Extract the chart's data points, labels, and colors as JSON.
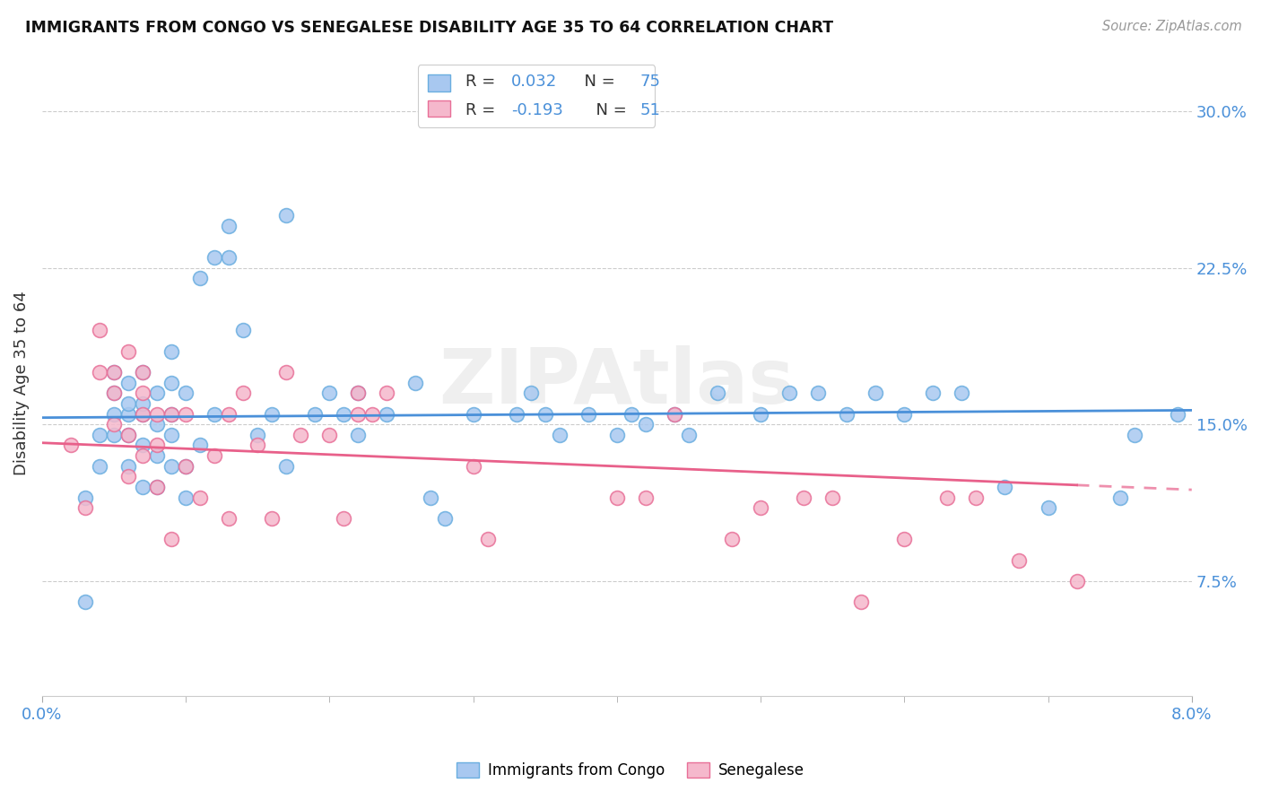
{
  "title": "IMMIGRANTS FROM CONGO VS SENEGALESE DISABILITY AGE 35 TO 64 CORRELATION CHART",
  "source": "Source: ZipAtlas.com",
  "ylabel": "Disability Age 35 to 64",
  "ytick_labels": [
    "7.5%",
    "15.0%",
    "22.5%",
    "30.0%"
  ],
  "ytick_values": [
    0.075,
    0.15,
    0.225,
    0.3
  ],
  "xlim": [
    0.0,
    0.08
  ],
  "ylim": [
    0.02,
    0.32
  ],
  "legend_bottom1": "Immigrants from Congo",
  "legend_bottom2": "Senegalese",
  "color_congo_fill": "#a8c8f0",
  "color_congo_edge": "#6aaee0",
  "color_senegal_fill": "#f5b8cc",
  "color_senegal_edge": "#e87098",
  "color_line_congo": "#4a90d9",
  "color_line_senegal": "#e8608a",
  "color_ytick": "#4a90d9",
  "color_xtick_ends": "#4a90d9",
  "color_legend_text": "#333333",
  "color_legend_numbers": "#4a90d9",
  "congo_R": 0.032,
  "congo_N": 75,
  "senegal_R": -0.193,
  "senegal_N": 51,
  "congo_scatter_x": [
    0.003,
    0.003,
    0.004,
    0.004,
    0.005,
    0.005,
    0.005,
    0.005,
    0.006,
    0.006,
    0.006,
    0.006,
    0.006,
    0.007,
    0.007,
    0.007,
    0.007,
    0.007,
    0.008,
    0.008,
    0.008,
    0.008,
    0.009,
    0.009,
    0.009,
    0.009,
    0.009,
    0.01,
    0.01,
    0.01,
    0.011,
    0.011,
    0.012,
    0.012,
    0.013,
    0.013,
    0.014,
    0.015,
    0.016,
    0.017,
    0.017,
    0.019,
    0.02,
    0.021,
    0.022,
    0.022,
    0.024,
    0.026,
    0.027,
    0.028,
    0.03,
    0.033,
    0.034,
    0.035,
    0.036,
    0.038,
    0.04,
    0.041,
    0.042,
    0.044,
    0.045,
    0.047,
    0.05,
    0.052,
    0.054,
    0.056,
    0.058,
    0.06,
    0.062,
    0.064,
    0.067,
    0.07,
    0.075,
    0.076,
    0.079
  ],
  "congo_scatter_y": [
    0.065,
    0.115,
    0.13,
    0.145,
    0.145,
    0.155,
    0.165,
    0.175,
    0.13,
    0.145,
    0.155,
    0.16,
    0.17,
    0.12,
    0.14,
    0.155,
    0.16,
    0.175,
    0.12,
    0.135,
    0.15,
    0.165,
    0.13,
    0.145,
    0.155,
    0.17,
    0.185,
    0.115,
    0.13,
    0.165,
    0.14,
    0.22,
    0.155,
    0.23,
    0.23,
    0.245,
    0.195,
    0.145,
    0.155,
    0.13,
    0.25,
    0.155,
    0.165,
    0.155,
    0.145,
    0.165,
    0.155,
    0.17,
    0.115,
    0.105,
    0.155,
    0.155,
    0.165,
    0.155,
    0.145,
    0.155,
    0.145,
    0.155,
    0.15,
    0.155,
    0.145,
    0.165,
    0.155,
    0.165,
    0.165,
    0.155,
    0.165,
    0.155,
    0.165,
    0.165,
    0.12,
    0.11,
    0.115,
    0.145,
    0.155
  ],
  "senegal_scatter_x": [
    0.002,
    0.003,
    0.004,
    0.004,
    0.005,
    0.005,
    0.005,
    0.006,
    0.006,
    0.006,
    0.007,
    0.007,
    0.007,
    0.007,
    0.008,
    0.008,
    0.008,
    0.009,
    0.009,
    0.01,
    0.01,
    0.011,
    0.012,
    0.013,
    0.013,
    0.014,
    0.015,
    0.016,
    0.017,
    0.018,
    0.02,
    0.021,
    0.022,
    0.022,
    0.023,
    0.024,
    0.03,
    0.031,
    0.04,
    0.042,
    0.044,
    0.048,
    0.05,
    0.053,
    0.055,
    0.057,
    0.06,
    0.063,
    0.065,
    0.068,
    0.072
  ],
  "senegal_scatter_y": [
    0.14,
    0.11,
    0.175,
    0.195,
    0.15,
    0.165,
    0.175,
    0.125,
    0.145,
    0.185,
    0.135,
    0.155,
    0.165,
    0.175,
    0.12,
    0.14,
    0.155,
    0.095,
    0.155,
    0.13,
    0.155,
    0.115,
    0.135,
    0.105,
    0.155,
    0.165,
    0.14,
    0.105,
    0.175,
    0.145,
    0.145,
    0.105,
    0.155,
    0.165,
    0.155,
    0.165,
    0.13,
    0.095,
    0.115,
    0.115,
    0.155,
    0.095,
    0.11,
    0.115,
    0.115,
    0.065,
    0.095,
    0.115,
    0.115,
    0.085,
    0.075
  ]
}
